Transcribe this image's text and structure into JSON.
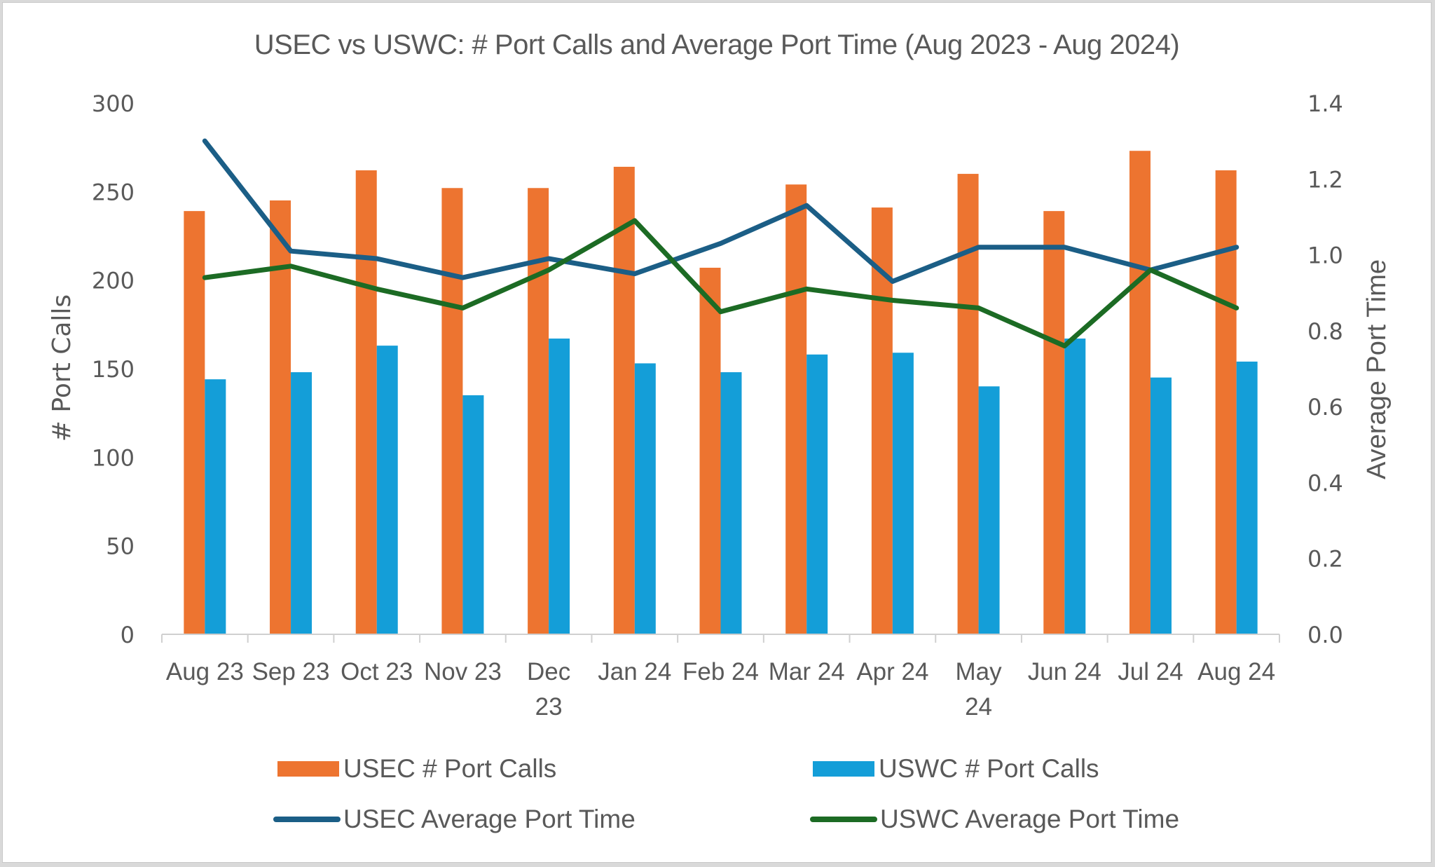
{
  "chart_data": {
    "type": "bar",
    "combo": "clustered bar + line (secondary axis)",
    "title": "USEC vs USWC: # Port Calls and Average Port Time (Aug 2023 - Aug 2024)",
    "xlabel": "",
    "ylabel": "# Port Calls",
    "y2label": "Average Port Time",
    "ylim": [
      0,
      300
    ],
    "y2lim": [
      0,
      1.4
    ],
    "yticks": [
      "0",
      "50",
      "100",
      "150",
      "200",
      "250",
      "300"
    ],
    "y2ticks": [
      "0.0",
      "0.2",
      "0.4",
      "0.6",
      "0.8",
      "1.0",
      "1.2",
      "1.4"
    ],
    "grid": false,
    "legend_position": "bottom",
    "categories": [
      "Aug 23",
      "Sep 23",
      "Oct 23",
      "Nov 23",
      "Dec 23",
      "Jan 24",
      "Feb 24",
      "Mar 24",
      "Apr 24",
      "May 24",
      "Jun 24",
      "Jul 24",
      "Aug 24"
    ],
    "series": [
      {
        "name": "USEC # Port Calls",
        "type": "bar",
        "axis": "left",
        "color": "#ED7430",
        "values": [
          239,
          245,
          262,
          252,
          252,
          264,
          207,
          254,
          241,
          260,
          239,
          273,
          262
        ]
      },
      {
        "name": "USWC # Port Calls",
        "type": "bar",
        "axis": "left",
        "color": "#149ED8",
        "values": [
          144,
          148,
          163,
          135,
          167,
          153,
          148,
          158,
          159,
          140,
          167,
          145,
          154
        ]
      },
      {
        "name": "USEC Average Port Time",
        "type": "line",
        "axis": "right",
        "color": "#1B5E86",
        "values": [
          1.3,
          1.01,
          0.99,
          0.94,
          0.99,
          0.95,
          1.03,
          1.13,
          0.93,
          1.02,
          1.02,
          0.96,
          1.02
        ]
      },
      {
        "name": "USWC Average Port Time",
        "type": "line",
        "axis": "right",
        "color": "#1C6B24",
        "values": [
          0.94,
          0.97,
          0.91,
          0.86,
          0.96,
          1.09,
          0.85,
          0.91,
          0.88,
          0.86,
          0.76,
          0.96,
          0.86
        ]
      }
    ]
  },
  "x_labels": [
    [
      "Aug 23"
    ],
    [
      "Sep 23"
    ],
    [
      "Oct 23"
    ],
    [
      "Nov 23"
    ],
    [
      "Dec",
      "23"
    ],
    [
      "Jan 24"
    ],
    [
      "Feb 24"
    ],
    [
      "Mar 24"
    ],
    [
      "Apr 24"
    ],
    [
      "May",
      "24"
    ],
    [
      "Jun 24"
    ],
    [
      "Jul 24"
    ],
    [
      "Aug 24"
    ]
  ],
  "legend": [
    {
      "label": "USEC # Port Calls",
      "kind": "bar",
      "color": "#ED7430"
    },
    {
      "label": "USWC # Port Calls",
      "kind": "bar",
      "color": "#149ED8"
    },
    {
      "label": "USEC Average Port Time",
      "kind": "line",
      "color": "#1B5E86"
    },
    {
      "label": "USWC Average Port Time",
      "kind": "line",
      "color": "#1C6B24"
    }
  ],
  "colors": {
    "text": "#595959",
    "axis_line": "#D0D0D0",
    "background": "#FFFFFF"
  }
}
